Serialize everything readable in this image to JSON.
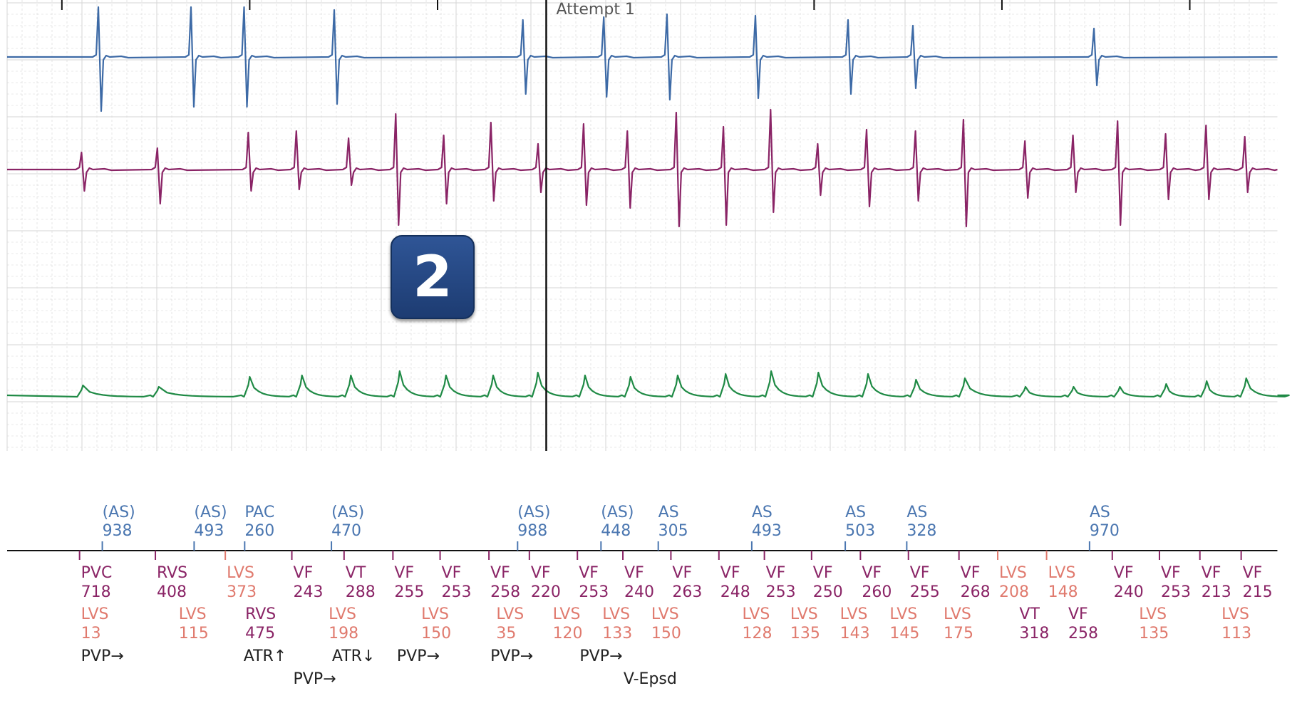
{
  "chart_data": {
    "type": "line",
    "title": "",
    "marker_label": "Attempt 1",
    "badge_label": "2",
    "time_axis": [
      0,
      1508
    ],
    "traces": [
      {
        "color": "#3d6aa6",
        "baseline": 80,
        "complexes": [
          {
            "t": 110,
            "u": 70,
            "d": -76
          },
          {
            "t": 220,
            "u": 70,
            "d": -70
          },
          {
            "t": 283,
            "u": 70,
            "d": -70
          },
          {
            "t": 390,
            "u": 66,
            "d": -66
          },
          {
            "t": 614,
            "u": 52,
            "d": -52
          },
          {
            "t": 710,
            "u": 56,
            "d": -56
          },
          {
            "t": 785,
            "u": 60,
            "d": -60
          },
          {
            "t": 890,
            "u": 58,
            "d": -58
          },
          {
            "t": 1000,
            "u": 52,
            "d": -52
          },
          {
            "t": 1077,
            "u": 44,
            "d": -44
          },
          {
            "t": 1292,
            "u": 40,
            "d": -40
          }
        ]
      },
      {
        "color": "#8a2466",
        "baseline": 238,
        "complexes": [
          {
            "t": 90,
            "u": 24,
            "d": -30
          },
          {
            "t": 180,
            "u": 30,
            "d": -48
          },
          {
            "t": 288,
            "u": 52,
            "d": -30
          },
          {
            "t": 345,
            "u": 54,
            "d": -28
          },
          {
            "t": 407,
            "u": 44,
            "d": -22
          },
          {
            "t": 463,
            "u": 78,
            "d": -78
          },
          {
            "t": 520,
            "u": 48,
            "d": -48
          },
          {
            "t": 576,
            "u": 66,
            "d": -44
          },
          {
            "t": 632,
            "u": 36,
            "d": -32
          },
          {
            "t": 686,
            "u": 64,
            "d": -50
          },
          {
            "t": 738,
            "u": 54,
            "d": -54
          },
          {
            "t": 796,
            "u": 80,
            "d": -80
          },
          {
            "t": 852,
            "u": 60,
            "d": -78
          },
          {
            "t": 908,
            "u": 84,
            "d": -60
          },
          {
            "t": 964,
            "u": 36,
            "d": -36
          },
          {
            "t": 1022,
            "u": 56,
            "d": -52
          },
          {
            "t": 1080,
            "u": 54,
            "d": -44
          },
          {
            "t": 1137,
            "u": 70,
            "d": -80
          },
          {
            "t": 1210,
            "u": 40,
            "d": -40
          },
          {
            "t": 1267,
            "u": 48,
            "d": -32
          },
          {
            "t": 1320,
            "u": 68,
            "d": -78
          },
          {
            "t": 1377,
            "u": 50,
            "d": -42
          },
          {
            "t": 1425,
            "u": 62,
            "d": -42
          },
          {
            "t": 1471,
            "u": 46,
            "d": -32
          }
        ]
      },
      {
        "color": "#1f8a45",
        "baseline": 555,
        "complexes": [
          {
            "t": 90,
            "u": 14
          },
          {
            "t": 180,
            "u": 12
          },
          {
            "t": 288,
            "u": 26
          },
          {
            "t": 350,
            "u": 28
          },
          {
            "t": 408,
            "u": 28
          },
          {
            "t": 466,
            "u": 34
          },
          {
            "t": 521,
            "u": 28
          },
          {
            "t": 577,
            "u": 28
          },
          {
            "t": 630,
            "u": 32
          },
          {
            "t": 686,
            "u": 28
          },
          {
            "t": 740,
            "u": 26
          },
          {
            "t": 796,
            "u": 28
          },
          {
            "t": 853,
            "u": 30
          },
          {
            "t": 907,
            "u": 34
          },
          {
            "t": 963,
            "u": 32
          },
          {
            "t": 1022,
            "u": 30
          },
          {
            "t": 1079,
            "u": 22
          },
          {
            "t": 1137,
            "u": 24
          },
          {
            "t": 1209,
            "u": 12
          },
          {
            "t": 1266,
            "u": 12
          },
          {
            "t": 1321,
            "u": 12
          },
          {
            "t": 1376,
            "u": 16
          },
          {
            "t": 1424,
            "u": 20
          },
          {
            "t": 1471,
            "u": 24
          }
        ]
      }
    ],
    "atrial_markers": [
      {
        "t": 113,
        "label": "(AS)",
        "value": "938"
      },
      {
        "t": 222,
        "label": "(AS)",
        "value": "493"
      },
      {
        "t": 282,
        "label": "PAC",
        "value": "260"
      },
      {
        "t": 385,
        "label": "(AS)",
        "value": "470"
      },
      {
        "t": 606,
        "label": "(AS)",
        "value": "988"
      },
      {
        "t": 705,
        "label": "(AS)",
        "value": "448"
      },
      {
        "t": 773,
        "label": "AS",
        "value": "305"
      },
      {
        "t": 884,
        "label": "AS",
        "value": "493"
      },
      {
        "t": 995,
        "label": "AS",
        "value": "503"
      },
      {
        "t": 1068,
        "label": "AS",
        "value": "328"
      },
      {
        "t": 1285,
        "label": "AS",
        "value": "970"
      }
    ],
    "ventricular_markers": [
      {
        "t": 86,
        "label": "PVC",
        "value": "718",
        "kind": "v"
      },
      {
        "t": 176,
        "label": "RVS",
        "value": "408",
        "kind": "v"
      },
      {
        "t": 259,
        "label": "LVS",
        "value": "373",
        "kind": "lvs"
      },
      {
        "t": 338,
        "label": "VF",
        "value": "243",
        "kind": "v"
      },
      {
        "t": 400,
        "label": "VT",
        "value": "288",
        "kind": "v"
      },
      {
        "t": 458,
        "label": "VF",
        "value": "255",
        "kind": "v"
      },
      {
        "t": 514,
        "label": "VF",
        "value": "253",
        "kind": "v"
      },
      {
        "t": 572,
        "label": "VF",
        "value": "258",
        "kind": "v"
      },
      {
        "t": 620,
        "label": "VF",
        "value": "220",
        "kind": "v"
      },
      {
        "t": 677,
        "label": "VF",
        "value": "253",
        "kind": "v"
      },
      {
        "t": 731,
        "label": "VF",
        "value": "240",
        "kind": "v"
      },
      {
        "t": 788,
        "label": "VF",
        "value": "263",
        "kind": "v"
      },
      {
        "t": 845,
        "label": "VF",
        "value": "248",
        "kind": "v"
      },
      {
        "t": 899,
        "label": "VF",
        "value": "253",
        "kind": "v"
      },
      {
        "t": 955,
        "label": "VF",
        "value": "250",
        "kind": "v"
      },
      {
        "t": 1013,
        "label": "VF",
        "value": "260",
        "kind": "v"
      },
      {
        "t": 1070,
        "label": "VF",
        "value": "255",
        "kind": "v"
      },
      {
        "t": 1130,
        "label": "VF",
        "value": "268",
        "kind": "v"
      },
      {
        "t": 1176,
        "label": "LVS",
        "value": "208",
        "kind": "lvs"
      },
      {
        "t": 1234,
        "label": "LVS",
        "value": "148",
        "kind": "lvs"
      },
      {
        "t": 1312,
        "label": "VF",
        "value": "240",
        "kind": "v"
      },
      {
        "t": 1368,
        "label": "VF",
        "value": "253",
        "kind": "v"
      },
      {
        "t": 1416,
        "label": "VF",
        "value": "213",
        "kind": "v"
      },
      {
        "t": 1465,
        "label": "VF",
        "value": "215",
        "kind": "v"
      }
    ],
    "lower_markers": [
      {
        "t": 86,
        "label": "LVS",
        "value": "13",
        "kind": "lvs"
      },
      {
        "t": 202,
        "label": "LVS",
        "value": "115",
        "kind": "lvs"
      },
      {
        "t": 281,
        "label": "RVS",
        "value": "475",
        "kind": "v"
      },
      {
        "t": 380,
        "label": "LVS",
        "value": "198",
        "kind": "lvs"
      },
      {
        "t": 490,
        "label": "LVS",
        "value": "150",
        "kind": "lvs"
      },
      {
        "t": 579,
        "label": "LVS",
        "value": "35",
        "kind": "lvs"
      },
      {
        "t": 646,
        "label": "LVS",
        "value": "120",
        "kind": "lvs"
      },
      {
        "t": 705,
        "label": "LVS",
        "value": "133",
        "kind": "lvs"
      },
      {
        "t": 763,
        "label": "LVS",
        "value": "150",
        "kind": "lvs"
      },
      {
        "t": 871,
        "label": "LVS",
        "value": "128",
        "kind": "lvs"
      },
      {
        "t": 928,
        "label": "LVS",
        "value": "135",
        "kind": "lvs"
      },
      {
        "t": 987,
        "label": "LVS",
        "value": "143",
        "kind": "lvs"
      },
      {
        "t": 1046,
        "label": "LVS",
        "value": "145",
        "kind": "lvs"
      },
      {
        "t": 1110,
        "label": "LVS",
        "value": "175",
        "kind": "lvs"
      },
      {
        "t": 1200,
        "label": "VT",
        "value": "318",
        "kind": "v"
      },
      {
        "t": 1258,
        "label": "VF",
        "value": "258",
        "kind": "v"
      },
      {
        "t": 1342,
        "label": "LVS",
        "value": "135",
        "kind": "lvs"
      },
      {
        "t": 1440,
        "label": "LVS",
        "value": "113",
        "kind": "lvs"
      }
    ],
    "annotations": [
      {
        "t": 86,
        "row": 0,
        "text": "PVP→"
      },
      {
        "t": 279,
        "row": 0,
        "text": "ATR↑"
      },
      {
        "t": 384,
        "row": 0,
        "text": "ATR↓"
      },
      {
        "t": 461,
        "row": 0,
        "text": "PVP→"
      },
      {
        "t": 572,
        "row": 0,
        "text": "PVP→"
      },
      {
        "t": 678,
        "row": 0,
        "text": "PVP→"
      },
      {
        "t": 338,
        "row": 1,
        "text": "PVP→"
      },
      {
        "t": 730,
        "row": 1,
        "text": "V-Epsd"
      }
    ],
    "marker_time": 640,
    "ticks": [
      65,
      288,
      511,
      958,
      1181,
      1404
    ],
    "colors": {
      "atrial": "#4a76b0",
      "ventricular": "#8a2466",
      "lvs": "#e07a6e",
      "annotation": "#222222",
      "grid": "#d5d5d5"
    }
  }
}
